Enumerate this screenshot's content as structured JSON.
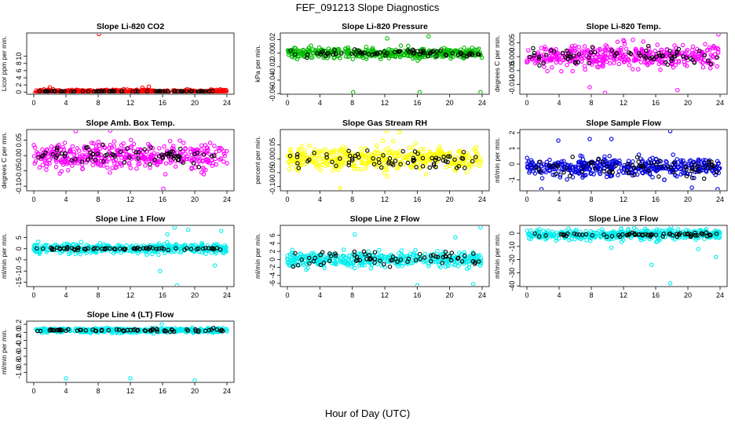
{
  "figure": {
    "title": "FEF_091213  Slope Diagnostics",
    "xlabel": "Hour of Day (UTC)"
  },
  "chart_data": [
    {
      "type": "scatter",
      "title": "Slope Li-820 CO2",
      "ylabel": "Licor ppm per min.",
      "xlim": [
        0,
        24
      ],
      "ylim": [
        -0.6,
        16.5
      ],
      "xticks": [
        0,
        4,
        8,
        12,
        16,
        20,
        24
      ],
      "yticks": [
        0,
        2,
        4,
        6,
        8,
        10
      ],
      "ytick_labels": [
        "0",
        "2",
        "4",
        "6",
        "8",
        "10"
      ],
      "color": "#ff0000",
      "center": 0.2,
      "spread": 0.4,
      "black_spread": 0.12,
      "outliers": [
        [
          8.1,
          16.2
        ],
        [
          0.3,
          -0.4
        ],
        [
          0.6,
          -0.3
        ],
        [
          13.5,
          1.2
        ],
        [
          14.3,
          1.5
        ],
        [
          2.0,
          1.3
        ]
      ]
    },
    {
      "type": "scatter",
      "title": "Slope Li-820 Pressure",
      "ylabel": "kPa per min.",
      "xlim": [
        0,
        24
      ],
      "ylim": [
        -0.061,
        0.03
      ],
      "xticks": [
        0,
        4,
        8,
        12,
        16,
        20,
        24
      ],
      "yticks": [
        -0.06,
        -0.04,
        -0.02,
        0,
        0.02
      ],
      "ytick_labels": [
        "-0.06",
        "-0.04",
        "-0.02",
        "0.00",
        "0.02"
      ],
      "color": "#00bb00",
      "center": 0.0,
      "spread": 0.007,
      "black_spread": 0.005,
      "outliers": [
        [
          8.1,
          -0.058
        ],
        [
          16.3,
          -0.058
        ],
        [
          23.8,
          -0.058
        ],
        [
          17.4,
          0.025
        ],
        [
          12.3,
          0.022
        ]
      ]
    },
    {
      "type": "scatter",
      "title": "Slope Li-820 Temp.",
      "ylabel": "degrees C per min.",
      "xlim": [
        0,
        24
      ],
      "ylim": [
        -0.0135,
        0.0085
      ],
      "xticks": [
        0,
        4,
        8,
        12,
        16,
        20,
        24
      ],
      "yticks": [
        -0.01,
        -0.005,
        0,
        0.005
      ],
      "ytick_labels": [
        "-0.010",
        "-0.005",
        "0.000",
        "0.005"
      ],
      "color": "#ff00ff",
      "center": 0.0,
      "spread": 0.0038,
      "black_spread": 0.0035,
      "outliers": [
        [
          23.8,
          0.008
        ],
        [
          7.8,
          -0.011
        ],
        [
          9.7,
          -0.013
        ],
        [
          18.7,
          -0.012
        ]
      ]
    },
    {
      "type": "scatter",
      "title": "Slope Amb. Box Temp.",
      "ylabel": "degrees C per min.",
      "xlim": [
        0,
        24
      ],
      "ylim": [
        -0.115,
        0.085
      ],
      "xticks": [
        0,
        4,
        8,
        12,
        16,
        20,
        24
      ],
      "yticks": [
        -0.1,
        -0.05,
        0,
        0.05
      ],
      "ytick_labels": [
        "-0.10",
        "-0.05",
        "0.00",
        "0.05"
      ],
      "color": "#ff00ff",
      "center": 0.0,
      "spread": 0.038,
      "black_spread": 0.03,
      "outliers": [
        [
          16.1,
          -0.108
        ],
        [
          5.2,
          0.08
        ],
        [
          9.5,
          0.082
        ]
      ]
    },
    {
      "type": "scatter",
      "title": "Slope Gas Stream RH",
      "ylabel": "percent per min.",
      "xlim": [
        0,
        24
      ],
      "ylim": [
        -0.115,
        0.105
      ],
      "xticks": [
        0,
        4,
        8,
        12,
        16,
        20,
        24
      ],
      "yticks": [
        -0.1,
        -0.05,
        0,
        0.05
      ],
      "ytick_labels": [
        "-0.10",
        "-0.05",
        "0.00",
        "0.05"
      ],
      "color": "#ffff00",
      "center": 0.0,
      "spread": 0.04,
      "black_spread": 0.035,
      "outliers": [
        [
          12.2,
          0.1
        ],
        [
          6.5,
          -0.105
        ],
        [
          13.8,
          0.095
        ]
      ]
    },
    {
      "type": "scatter",
      "title": "Slope Sample Flow",
      "ylabel": "ml/min per min.",
      "xlim": [
        0,
        24
      ],
      "ylim": [
        -1.7,
        2.2
      ],
      "xticks": [
        0,
        4,
        8,
        12,
        16,
        20,
        24
      ],
      "yticks": [
        -1,
        0,
        1,
        2
      ],
      "ytick_labels": [
        "-1",
        "0",
        "1",
        "2"
      ],
      "color": "#0000dd",
      "center": -0.2,
      "spread": 0.5,
      "black_spread": 0.7,
      "outliers": [
        [
          1.8,
          -1.6
        ],
        [
          17.8,
          2.1
        ],
        [
          3.9,
          1.5
        ],
        [
          7.8,
          1.6
        ],
        [
          10.5,
          1.6
        ],
        [
          23.7,
          -1.6
        ],
        [
          20.5,
          -1.5
        ]
      ]
    },
    {
      "type": "scatter",
      "title": "Slope Line 1 Flow",
      "ylabel": "ml/min per min.",
      "xlim": [
        0,
        24
      ],
      "ylim": [
        -17,
        10.5
      ],
      "xticks": [
        0,
        4,
        8,
        12,
        16,
        20,
        24
      ],
      "yticks": [
        -15,
        -10,
        -5,
        0,
        5
      ],
      "ytick_labels": [
        "-15",
        "-10",
        "-5",
        "0",
        "5"
      ],
      "color": "#00eeee",
      "center": 0.0,
      "spread": 2.0,
      "black_spread": 0.5,
      "outliers": [
        [
          17.8,
          -16.5
        ],
        [
          15.7,
          -10
        ],
        [
          17.5,
          9.5
        ],
        [
          19.2,
          8.5
        ],
        [
          16.6,
          6.5
        ],
        [
          22.5,
          -7.5
        ],
        [
          23.3,
          8
        ]
      ]
    },
    {
      "type": "scatter",
      "title": "Slope Line 2 Flow",
      "ylabel": "ml/min per min.",
      "xlim": [
        0,
        24
      ],
      "ylim": [
        -6.8,
        8.5
      ],
      "xticks": [
        0,
        4,
        8,
        12,
        16,
        20,
        24
      ],
      "yticks": [
        -6,
        -4,
        -2,
        0,
        2,
        4,
        6
      ],
      "ytick_labels": [
        "-6",
        "-4",
        "-2",
        "0",
        "2",
        "4",
        "6"
      ],
      "color": "#00eeee",
      "center": 0.0,
      "spread": 1.6,
      "black_spread": 1.8,
      "outliers": [
        [
          23.8,
          8.0
        ],
        [
          16.0,
          -6.5
        ],
        [
          22.9,
          -6.2
        ],
        [
          20.7,
          5.5
        ],
        [
          8.3,
          6.2
        ]
      ]
    },
    {
      "type": "scatter",
      "title": "Slope Line 3 Flow",
      "ylabel": "ml/min per min.",
      "xlim": [
        0,
        24
      ],
      "ylim": [
        -40.5,
        6
      ],
      "xticks": [
        0,
        4,
        8,
        12,
        16,
        20,
        24
      ],
      "yticks": [
        -40,
        -30,
        -20,
        -10,
        0
      ],
      "ytick_labels": [
        "-40",
        "-30",
        "-20",
        "-10",
        "0"
      ],
      "color": "#00eeee",
      "center": -1.0,
      "spread": 3.5,
      "black_spread": 1.5,
      "outliers": [
        [
          17.8,
          -38
        ],
        [
          15.5,
          -24
        ],
        [
          23.5,
          -18
        ],
        [
          21.3,
          -12
        ],
        [
          10.5,
          -11
        ],
        [
          17.9,
          5
        ]
      ]
    },
    {
      "type": "scatter",
      "title": "Slope Line 4 (LT) Flow",
      "ylabel": "ml/min per min.",
      "xlim": [
        0,
        24
      ],
      "ylim": [
        -1.25,
        0.28
      ],
      "xticks": [
        0,
        4,
        8,
        12,
        16,
        20,
        24
      ],
      "yticks": [
        -1.0,
        -0.8,
        -0.6,
        -0.4,
        -0.2,
        0,
        0.2
      ],
      "ytick_labels": [
        "-1.0",
        "-0.8",
        "-0.6",
        "-0.4",
        "-0.2",
        "0.0",
        "0.2"
      ],
      "color": "#00eeee",
      "center": 0.05,
      "spread": 0.05,
      "black_spread": 0.04,
      "outliers": [
        [
          4.0,
          -1.15
        ],
        [
          12.0,
          -1.15
        ],
        [
          20.0,
          -1.2
        ],
        [
          15.9,
          0.2
        ]
      ]
    }
  ]
}
